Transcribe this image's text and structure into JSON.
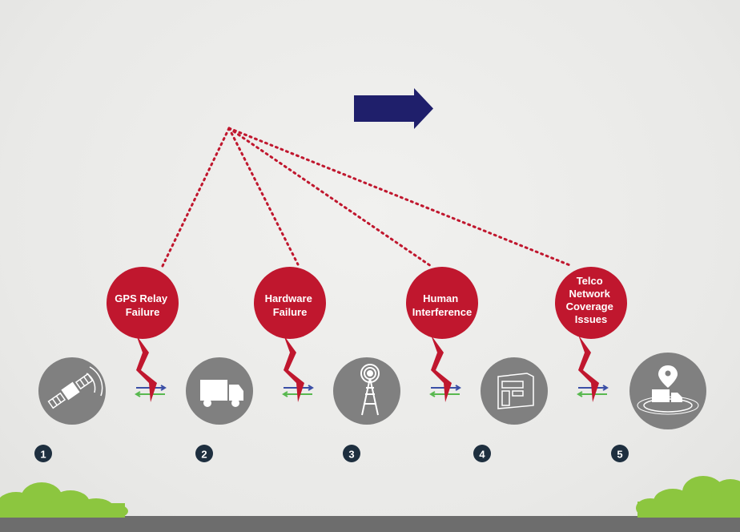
{
  "colors": {
    "background": "#ebebe9",
    "arrow": "#1f1f6b",
    "bubble": "#c0172e",
    "dotted_line": "#c0172e",
    "station": "#808080",
    "badge": "#1e2f3f",
    "exchange_blue": "#3b4fa6",
    "exchange_green": "#58b84f",
    "grass": "#8cc63f",
    "road": "#6d6d6d"
  },
  "failures": [
    {
      "lines": [
        "GPS Relay",
        "Failure"
      ]
    },
    {
      "lines": [
        "Hardware",
        "Failure"
      ]
    },
    {
      "lines": [
        "Human",
        "Interference"
      ]
    },
    {
      "lines": [
        "Telco",
        "Network",
        "Coverage",
        "Issues"
      ]
    }
  ],
  "stations": [
    {
      "number": "1",
      "icon": "satellite-icon"
    },
    {
      "number": "2",
      "icon": "truck-icon"
    },
    {
      "number": "3",
      "icon": "cell-tower-icon"
    },
    {
      "number": "4",
      "icon": "server-building-icon"
    },
    {
      "number": "5",
      "icon": "tracked-truck-location-icon"
    }
  ]
}
